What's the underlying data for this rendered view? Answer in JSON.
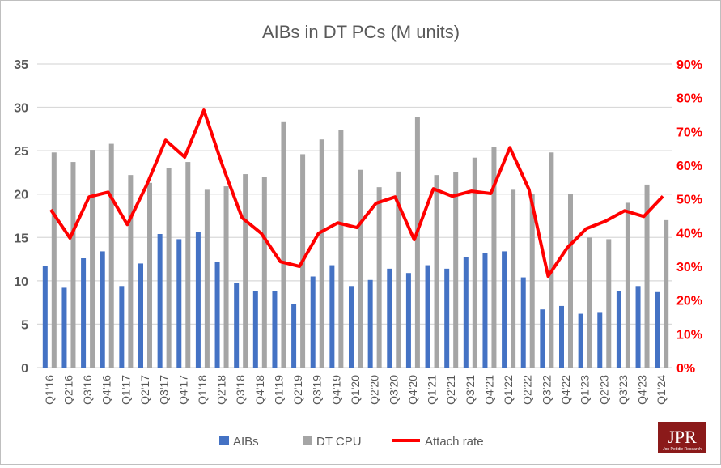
{
  "chart_data": {
    "type": "bar",
    "title": "AIBs in DT PCs (M units)",
    "categories": [
      "Q1'16",
      "Q2'16",
      "Q3'16",
      "Q4'16",
      "Q1'17",
      "Q2'17",
      "Q3'17",
      "Q4'17",
      "Q1'18",
      "Q2'18",
      "Q3'18",
      "Q4'18",
      "Q1'19",
      "Q2'19",
      "Q3'19",
      "Q4'19",
      "Q1'20",
      "Q2'20",
      "Q3'20",
      "Q4'20",
      "Q1'21",
      "Q2'21",
      "Q3'21",
      "Q4'21",
      "Q1'22",
      "Q2'22",
      "Q3'22",
      "Q4'22",
      "Q1'23",
      "Q2'23",
      "Q3'23",
      "Q4'23",
      "Q1'24"
    ],
    "series": [
      {
        "name": "AIBs",
        "type": "bar",
        "axis": "left",
        "color": "#4472c4",
        "values": [
          11.7,
          9.2,
          12.6,
          13.4,
          9.4,
          12.0,
          15.4,
          14.8,
          15.6,
          12.2,
          9.8,
          8.8,
          8.8,
          7.3,
          10.5,
          11.8,
          9.4,
          10.1,
          11.4,
          10.9,
          11.8,
          11.4,
          12.7,
          13.2,
          13.4,
          10.4,
          6.7,
          7.1,
          6.2,
          6.4,
          8.8,
          9.4,
          8.7
        ]
      },
      {
        "name": "DT CPU",
        "type": "bar",
        "axis": "left",
        "color": "#a5a5a5",
        "values": [
          24.8,
          23.7,
          25.1,
          25.8,
          22.2,
          21.3,
          23.0,
          23.7,
          20.5,
          20.9,
          22.3,
          22.0,
          28.3,
          24.6,
          26.3,
          27.4,
          22.8,
          20.8,
          22.6,
          28.9,
          22.2,
          22.5,
          24.2,
          25.4,
          20.5,
          20.0,
          24.8,
          20.0,
          15.0,
          14.8,
          19.0,
          21.1,
          17.0
        ]
      },
      {
        "name": "Attach rate",
        "type": "line",
        "axis": "right",
        "color": "#ff0000",
        "values": [
          46.8,
          38.4,
          50.6,
          52.0,
          42.4,
          54.0,
          67.4,
          62.4,
          76.3,
          59.5,
          44.4,
          39.8,
          31.4,
          30.0,
          39.8,
          42.9,
          41.5,
          48.7,
          50.6,
          37.9,
          53.0,
          50.8,
          52.3,
          51.6,
          65.2,
          52.8,
          27.1,
          35.5,
          41.2,
          43.4,
          46.5,
          44.8,
          50.8
        ]
      }
    ],
    "y_left": {
      "range": [
        0,
        35
      ],
      "ticks": [
        "0",
        "5",
        "10",
        "15",
        "20",
        "25",
        "30",
        "35"
      ]
    },
    "y_right": {
      "range": [
        0,
        90
      ],
      "ticks": [
        "0%",
        "10%",
        "20%",
        "30%",
        "40%",
        "50%",
        "60%",
        "70%",
        "80%",
        "90%"
      ],
      "color": "#ff0000"
    },
    "grid": true,
    "legend_position": "bottom"
  },
  "logo": {
    "text": "JPR",
    "subtext": "Jon Peddie Research"
  }
}
